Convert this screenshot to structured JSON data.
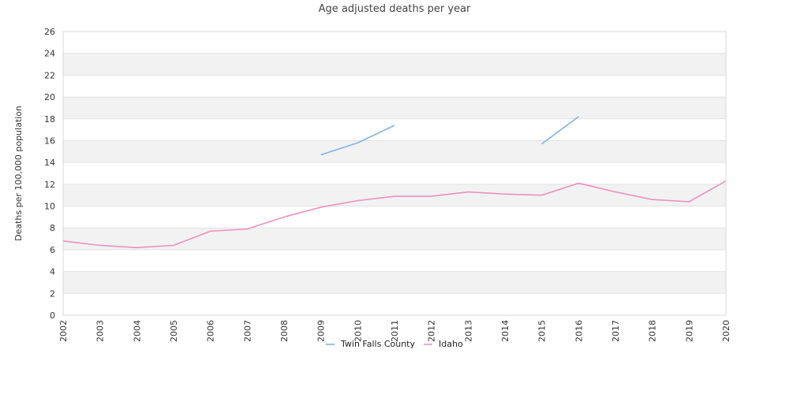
{
  "chart_data": {
    "type": "line",
    "title": "Age adjusted deaths per year",
    "xlabel": "",
    "ylabel": "Deaths per 100,000 population",
    "x": [
      "2002",
      "2003",
      "2004",
      "2005",
      "2006",
      "2007",
      "2008",
      "2009",
      "2010",
      "2011",
      "2012",
      "2013",
      "2014",
      "2015",
      "2016",
      "2017",
      "2018",
      "2019",
      "2020"
    ],
    "ylim": [
      0,
      26
    ],
    "yticks": [
      "0",
      "2",
      "4",
      "6",
      "8",
      "10",
      "12",
      "14",
      "16",
      "18",
      "20",
      "22",
      "24",
      "26"
    ],
    "grid": "alternating horizontal bands",
    "legend": "bottom-center",
    "series": [
      {
        "name": "Twin Falls County",
        "color": "#7db3e8",
        "values": [
          null,
          null,
          null,
          null,
          null,
          null,
          null,
          14.7,
          15.8,
          17.4,
          null,
          null,
          null,
          15.7,
          18.2,
          null,
          null,
          null,
          null
        ]
      },
      {
        "name": "Idaho",
        "color": "#ee8fc4",
        "values": [
          6.8,
          6.4,
          6.2,
          6.4,
          7.7,
          7.9,
          9.0,
          9.9,
          10.5,
          10.9,
          10.9,
          11.3,
          11.1,
          11.0,
          12.1,
          11.3,
          10.6,
          10.4,
          12.3
        ]
      }
    ]
  }
}
